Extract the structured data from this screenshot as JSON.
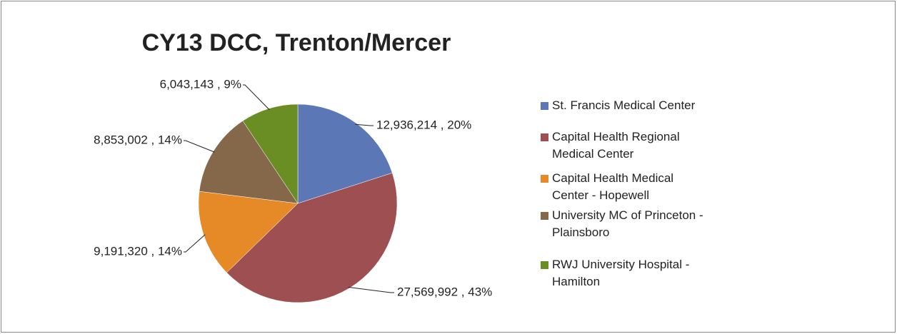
{
  "chart_data": {
    "type": "pie",
    "title": "CY13 DCC, Trenton/Mercer",
    "categories": [
      "St. Francis Medical Center",
      "Capital Health Regional Medical Center",
      "Capital Health Medical Center - Hopewell",
      "University MC of Princeton - Plainsboro",
      "RWJ University Hospital - Hamilton"
    ],
    "values": [
      12936214,
      27569992,
      9191320,
      8853002,
      6043143
    ],
    "value_labels": [
      "12,936,214 , 20%",
      "27,569,992 , 43%",
      "9,191,320 , 14%",
      "8,853,002 , 14%",
      "6,043,143 , 9%"
    ],
    "colors": [
      "#5b77b6",
      "#9d4f51",
      "#e58a27",
      "#85684a",
      "#6a8e24"
    ],
    "legend": "right"
  }
}
